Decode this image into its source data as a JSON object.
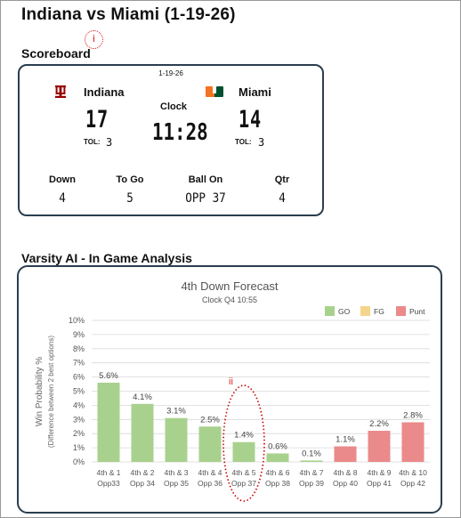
{
  "page_title": "Indiana vs Miami  (1-19-26)",
  "markers": {
    "first": "i",
    "second": "ii"
  },
  "scoreboard": {
    "heading": "Scoreboard",
    "date": "1-19-26",
    "home": {
      "name": "Indiana",
      "score": "17",
      "tol_label": "TOL:",
      "tol_value": "3",
      "color": "#990000"
    },
    "away": {
      "name": "Miami",
      "score": "14",
      "tol_label": "TOL:",
      "tol_value": "3",
      "color": "#f47321",
      "secondary_color": "#005030"
    },
    "clock_label": "Clock",
    "clock_value": "11:28",
    "stats": [
      {
        "label": "Down",
        "value": "4"
      },
      {
        "label": "To Go",
        "value": "5"
      },
      {
        "label": "Ball On",
        "value": "OPP 37"
      },
      {
        "label": "Qtr",
        "value": "4"
      }
    ]
  },
  "analysis": {
    "heading": "Varsity AI - In Game Analysis"
  },
  "chart_data": {
    "type": "bar",
    "title": "4th Down Forecast",
    "subtitle": "Clock    Q4 10:55",
    "ylabel": "Win Probability %",
    "ylabel2": "(Difference between 2 best options)",
    "ylim": [
      0,
      10
    ],
    "yticks": [
      "0%",
      "1%",
      "2%",
      "3%",
      "4%",
      "5%",
      "6%",
      "7%",
      "8%",
      "9%",
      "10%"
    ],
    "categories": [
      [
        "4th & 1",
        "Opp33"
      ],
      [
        "4th & 2",
        "Opp 34"
      ],
      [
        "4th & 3",
        "Opp 35"
      ],
      [
        "4th & 4",
        "Opp 36"
      ],
      [
        "4th & 5",
        "Opp 37"
      ],
      [
        "4th & 6",
        "Opp 38"
      ],
      [
        "4th & 7",
        "Opp 39"
      ],
      [
        "4th & 8",
        "Opp 40"
      ],
      [
        "4th & 9",
        "Opp 41"
      ],
      [
        "4th & 10",
        "Opp 42"
      ]
    ],
    "values": [
      5.6,
      4.1,
      3.1,
      2.5,
      1.4,
      0.6,
      0.1,
      1.1,
      2.2,
      2.8
    ],
    "value_labels": [
      "5.6%",
      "4.1%",
      "3.1%",
      "2.5%",
      "1.4%",
      "0.6%",
      "0.1%",
      "1.1%",
      "2.2%",
      "2.8%"
    ],
    "bar_series": [
      "GO",
      "GO",
      "GO",
      "GO",
      "GO",
      "GO",
      "GO",
      "Punt",
      "Punt",
      "Punt"
    ],
    "legend": [
      {
        "name": "GO",
        "color": "#a9d18e"
      },
      {
        "name": "FG",
        "color": "#f4d58d"
      },
      {
        "name": "Punt",
        "color": "#ea8a8a"
      }
    ],
    "legend_position": "top-right",
    "grid": true
  }
}
